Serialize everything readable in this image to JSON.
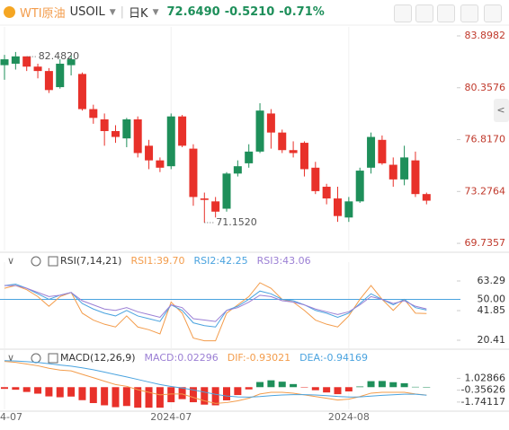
{
  "header": {
    "symbol_name": "WTI原油",
    "symbol": "USOIL",
    "period": "日K",
    "price": "72.6490",
    "change": "-0.5210",
    "change_pct": "-0.71%"
  },
  "chart_data": [
    {
      "type": "candlestick",
      "categories": [
        "4-07",
        null,
        null,
        null,
        null,
        null,
        null,
        null,
        null,
        null,
        null,
        null,
        null,
        null,
        null,
        "2024-07",
        null,
        null,
        null,
        null,
        null,
        null,
        null,
        null,
        null,
        null,
        null,
        null,
        null,
        null,
        null,
        "2024-08",
        null,
        null,
        null,
        null,
        null,
        null,
        null
      ],
      "open": [
        81.9,
        82.0,
        82.5,
        81.8,
        81.5,
        80.4,
        81.9,
        81.3,
        78.9,
        78.2,
        77.4,
        76.9,
        78.2,
        76.4,
        75.4,
        75.0,
        78.4,
        76.2,
        72.8,
        72.6,
        72.1,
        74.5,
        75.2,
        76.0,
        78.6,
        77.3,
        76.1,
        76.6,
        74.9,
        73.6,
        72.8,
        71.5,
        72.6,
        74.9,
        76.8,
        75.1,
        74.1,
        75.4,
        73.1
      ],
      "high": [
        82.6,
        82.8,
        82.482,
        82.0,
        81.7,
        82.3,
        82.6,
        81.4,
        79.2,
        78.6,
        77.8,
        78.3,
        78.4,
        76.8,
        75.6,
        78.6,
        78.5,
        76.5,
        73.2,
        72.9,
        74.6,
        75.4,
        76.5,
        79.3,
        78.9,
        77.5,
        76.7,
        76.7,
        75.3,
        73.8,
        73.6,
        72.9,
        74.9,
        77.3,
        77.1,
        75.6,
        76.4,
        76.0,
        73.2
      ],
      "low": [
        80.9,
        81.6,
        81.5,
        81.0,
        80.0,
        80.3,
        81.2,
        78.8,
        77.9,
        76.4,
        76.6,
        76.3,
        75.6,
        74.8,
        74.6,
        74.8,
        76.3,
        72.3,
        71.152,
        71.5,
        71.9,
        74.3,
        74.9,
        75.9,
        76.2,
        75.9,
        75.6,
        74.3,
        73.1,
        72.4,
        71.2,
        71.2,
        72.5,
        74.5,
        75.1,
        73.6,
        73.7,
        72.9,
        72.4
      ],
      "close": [
        82.3,
        82.5,
        81.8,
        81.5,
        80.2,
        82.0,
        82.3,
        78.9,
        78.3,
        77.4,
        77.0,
        78.2,
        75.9,
        75.4,
        74.9,
        78.4,
        76.4,
        72.9,
        72.7,
        71.9,
        74.5,
        75.0,
        76.0,
        78.8,
        77.3,
        76.1,
        75.9,
        74.8,
        73.3,
        72.8,
        71.6,
        72.6,
        74.7,
        77.0,
        75.2,
        74.1,
        75.6,
        73.1,
        72.649
      ],
      "up_color": "#1e8f5a",
      "down_color": "#e8312a",
      "ylim": [
        69.25,
        84.51
      ],
      "yticks": [
        83.8982,
        80.3576,
        {
          "value": 76.817,
          "label": "76.8170"
        },
        73.2764,
        69.7357
      ],
      "annotations": [
        {
          "label": "82.4820",
          "value": 82.482,
          "index": 2,
          "at": "high"
        },
        {
          "label": "71.1520",
          "value": 71.152,
          "index": 18,
          "at": "low"
        }
      ]
    },
    {
      "type": "line",
      "title": "RSI(7,14,21)",
      "legend": [
        "RSI1:39.70",
        "RSI2:42.25",
        "RSI3:43.06"
      ],
      "series": [
        {
          "color": "#f39c4b",
          "values": [
            58,
            60,
            57,
            52,
            45,
            52,
            55,
            40,
            35,
            32,
            30,
            38,
            30,
            28,
            25,
            48,
            40,
            22,
            20,
            20,
            40,
            46,
            52,
            62,
            58,
            50,
            48,
            42,
            35,
            32,
            30,
            38,
            50,
            60,
            50,
            42,
            50,
            40,
            39.7
          ]
        },
        {
          "color": "#4aa3df",
          "values": [
            60,
            61,
            58,
            54,
            50,
            53,
            55,
            47,
            43,
            40,
            38,
            42,
            38,
            36,
            34,
            46,
            42,
            33,
            31,
            30,
            42,
            45,
            50,
            56,
            54,
            50,
            49,
            46,
            42,
            40,
            37,
            40,
            47,
            54,
            50,
            46,
            50,
            44,
            42.25
          ]
        },
        {
          "color": "#9b7fd4",
          "values": [
            60,
            60,
            58,
            55,
            52,
            53,
            55,
            49,
            46,
            43,
            42,
            44,
            41,
            39,
            37,
            46,
            44,
            36,
            35,
            34,
            42,
            44,
            48,
            53,
            52,
            49,
            48,
            46,
            43,
            41,
            39,
            41,
            46,
            52,
            50,
            47,
            49,
            45,
            43.06
          ]
        }
      ],
      "ylim": [
        14.56,
        71.74
      ],
      "yticks": [
        63.29,
        {
          "value": 50,
          "label": "50.00"
        },
        41.85,
        20.41
      ],
      "reference_line": 50,
      "reference_color": "#4aa3df"
    },
    {
      "type": "macd",
      "title": "MACD(12,26,9)",
      "legend": [
        "MACD:0.02296",
        "DIF:-0.93021",
        "DEA:-0.94169"
      ],
      "legend_colors": [
        "#9b7fd4",
        "#f39c4b",
        "#4aa3df"
      ],
      "histogram": [
        -0.2,
        -0.3,
        -0.56,
        -0.76,
        -1.08,
        -1.18,
        -1.1,
        -1.52,
        -1.86,
        -2.12,
        -2.34,
        -2.2,
        -2.4,
        -2.4,
        -2.4,
        -1.76,
        -1.4,
        -1.76,
        -2.04,
        -2.12,
        -1.54,
        -0.92,
        -0.26,
        0.6,
        0.8,
        0.64,
        0.36,
        -0.04,
        -0.36,
        -0.62,
        -0.82,
        -0.5,
        0.08,
        0.7,
        0.72,
        0.58,
        0.46,
        0.04,
        0.02296
      ],
      "up_color": "#1e8f5a",
      "down_color": "#e8312a",
      "series": [
        {
          "color": "#f39c4b",
          "values": [
            3.0,
            2.9,
            2.7,
            2.5,
            2.2,
            2.0,
            1.9,
            1.5,
            1.1,
            0.7,
            0.3,
            0.1,
            -0.3,
            -0.6,
            -0.9,
            -0.8,
            -0.8,
            -1.2,
            -1.6,
            -1.9,
            -1.8,
            -1.6,
            -1.3,
            -0.8,
            -0.6,
            -0.6,
            -0.7,
            -0.9,
            -1.1,
            -1.3,
            -1.5,
            -1.4,
            -1.1,
            -0.7,
            -0.6,
            -0.6,
            -0.6,
            -0.8,
            -0.93021
          ]
        },
        {
          "color": "#4aa3df",
          "values": [
            3.1,
            3.05,
            2.98,
            2.88,
            2.74,
            2.59,
            2.45,
            2.26,
            2.03,
            1.76,
            1.47,
            1.2,
            0.9,
            0.6,
            0.3,
            0.08,
            -0.1,
            -0.32,
            -0.58,
            -0.84,
            -1.03,
            -1.14,
            -1.17,
            -1.1,
            -1.0,
            -0.92,
            -0.88,
            -0.88,
            -0.92,
            -0.99,
            -1.09,
            -1.15,
            -1.14,
            -1.05,
            -0.96,
            -0.89,
            -0.83,
            -0.82,
            -0.94169
          ]
        }
      ],
      "ylim": [
        -2.593,
        4.118
      ],
      "yticks": [
        1.02866,
        -0.35626,
        -1.74117
      ]
    }
  ]
}
